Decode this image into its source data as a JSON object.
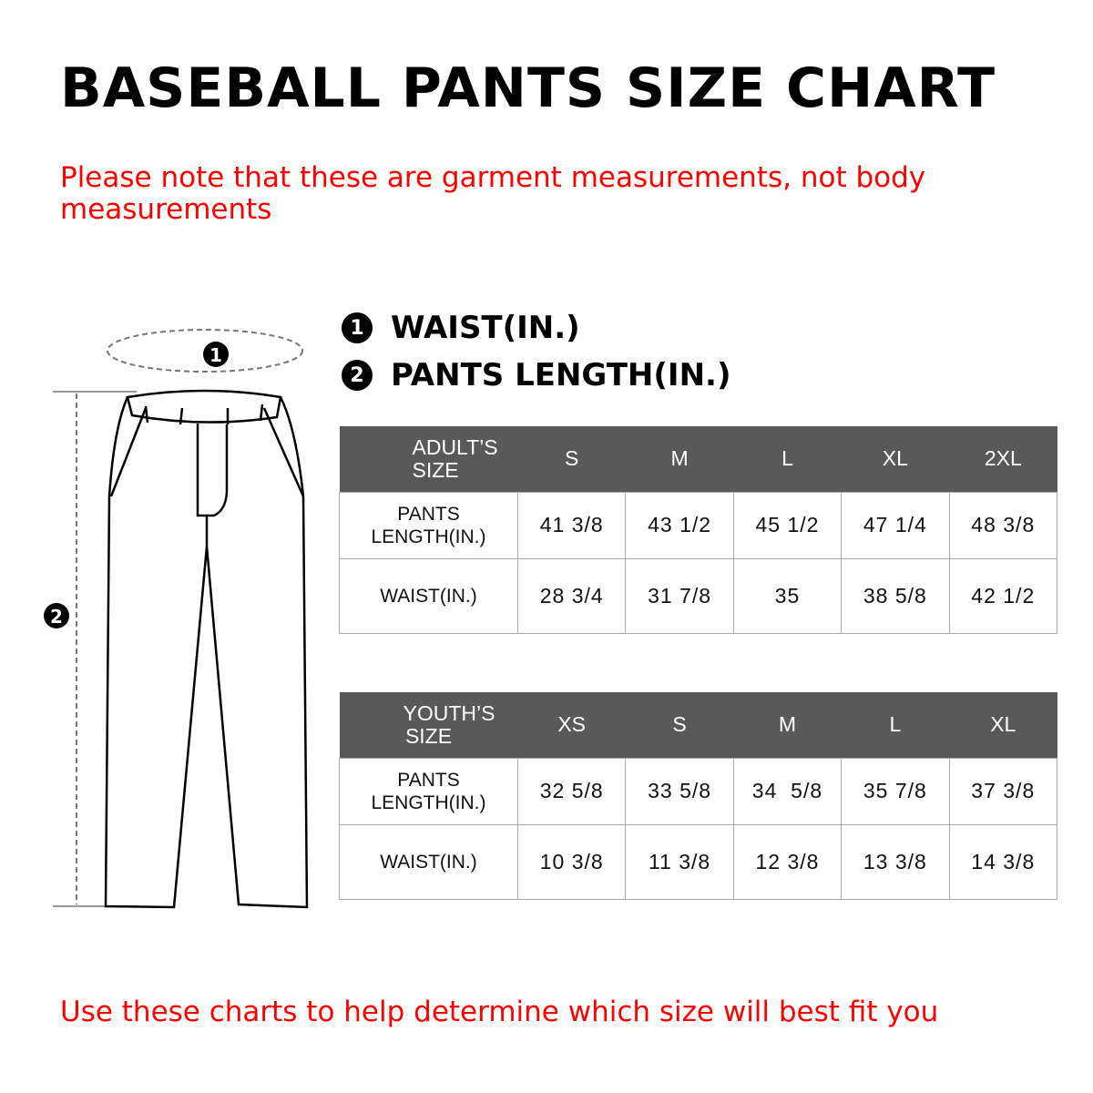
{
  "title": "BASEBALL PANTS SIZE CHART",
  "note": "Please note that these are garment measurements, not body measurements",
  "footer": "Use these charts to help determine which size will best fit you",
  "legend": [
    {
      "marker": "1",
      "label": "WAIST(IN.)"
    },
    {
      "marker": "2",
      "label": "PANTS LENGTH(IN.)"
    }
  ],
  "diagram": {
    "waist_marker": "1",
    "length_marker": "2"
  },
  "colors": {
    "header_bg": "#595959",
    "note_red": "#ff0000"
  },
  "adult": {
    "header": "ADULT’S SIZE",
    "sizes": [
      "S",
      "M",
      "L",
      "XL",
      "2XL"
    ],
    "rows": [
      {
        "label": "PANTS LENGTH(IN.)",
        "values": [
          "41 3/8",
          "43 1/2",
          "45 1/2",
          "47 1/4",
          "48 3/8"
        ]
      },
      {
        "label": "WAIST(IN.)",
        "values": [
          "28 3/4",
          "31 7/8",
          "35",
          "38 5/8",
          "42 1/2"
        ]
      }
    ]
  },
  "youth": {
    "header": "YOUTH’S SIZE",
    "sizes": [
      "XS",
      "S",
      "M",
      "L",
      "XL"
    ],
    "rows": [
      {
        "label": "PANTS LENGTH(IN.)",
        "values": [
          "32 5/8",
          "33 5/8",
          "34  5/8",
          "35 7/8",
          "37 3/8"
        ]
      },
      {
        "label": "WAIST(IN.)",
        "values": [
          "10 3/8",
          "11 3/8",
          "12 3/8",
          "13 3/8",
          "14 3/8"
        ]
      }
    ]
  }
}
